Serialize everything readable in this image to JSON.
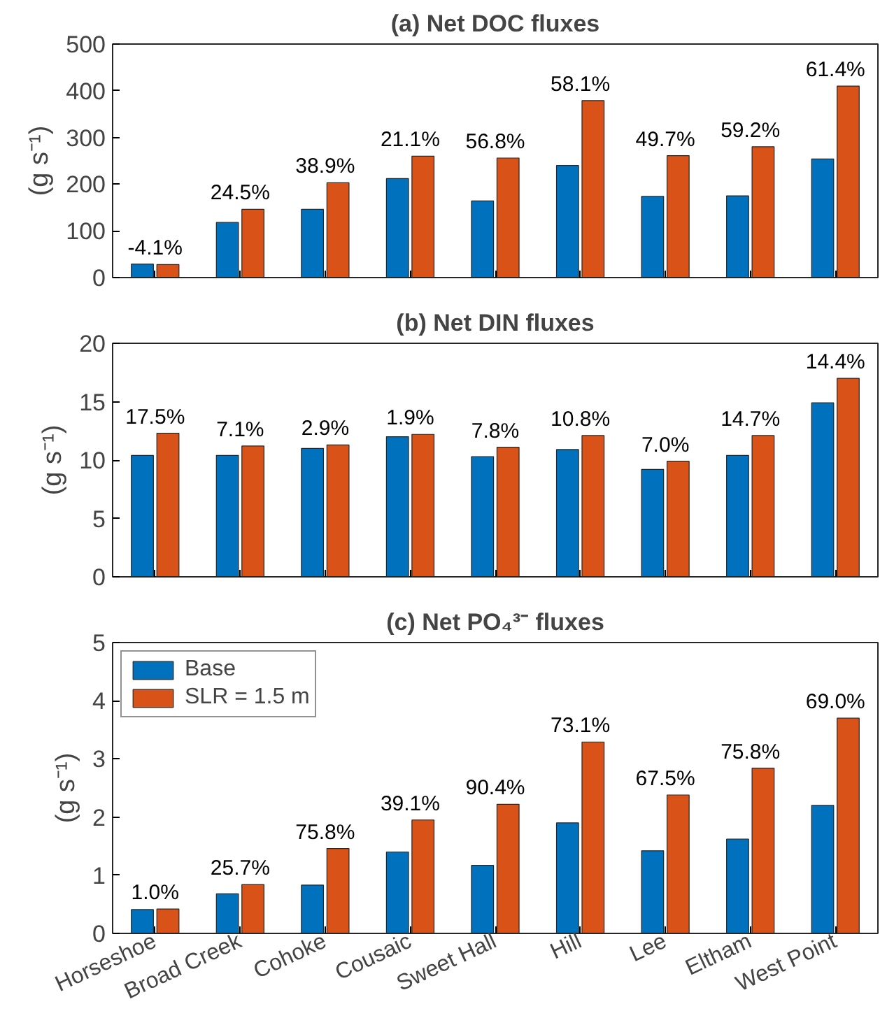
{
  "chart_data": [
    {
      "type": "bar",
      "title": "(a) Net DOC fluxes",
      "ylabel": "(g s⁻¹)",
      "categories": [
        "Horseshoe",
        "Broad Creek",
        "Cohoke",
        "Cousaic",
        "Sweet Hall",
        "Hill",
        "Lee",
        "Eltham",
        "West Point"
      ],
      "series": [
        {
          "color": "#0072bd",
          "values": [
            29,
            118,
            146,
            212,
            164,
            240,
            174,
            175,
            254
          ]
        },
        {
          "color": "#d95319",
          "values": [
            28,
            146,
            203,
            260,
            256,
            379,
            261,
            280,
            410
          ]
        }
      ],
      "ylim": [
        0,
        500
      ],
      "yticks": [
        0,
        100,
        200,
        300,
        400,
        500
      ],
      "tick_labels": "y",
      "legend": false,
      "grid": false,
      "annotations": [
        {
          "text": "-4.1%",
          "x": "Horseshoe",
          "y": 29
        },
        {
          "text": "24.5%",
          "x": "Broad Creek",
          "y": 146
        },
        {
          "text": "38.9%",
          "x": "Cohoke",
          "y": 203
        },
        {
          "text": "21.1%",
          "x": "Cousaic",
          "y": 260
        },
        {
          "text": "56.8%",
          "x": "Sweet Hall",
          "y": 256
        },
        {
          "text": "58.1%",
          "x": "Hill",
          "y": 379
        },
        {
          "text": "49.7%",
          "x": "Lee",
          "y": 261
        },
        {
          "text": "59.2%",
          "x": "Eltham",
          "y": 280
        },
        {
          "text": "61.4%",
          "x": "West Point",
          "y": 410
        }
      ]
    },
    {
      "type": "bar",
      "title": "(b) Net DIN fluxes",
      "ylabel": "(g s⁻¹)",
      "categories": [
        "Horseshoe",
        "Broad Creek",
        "Cohoke",
        "Cousaic",
        "Sweet Hall",
        "Hill",
        "Lee",
        "Eltham",
        "West Point"
      ],
      "series": [
        {
          "color": "#0072bd",
          "values": [
            10.4,
            10.4,
            11.0,
            12.0,
            10.3,
            10.9,
            9.2,
            10.4,
            14.9
          ]
        },
        {
          "color": "#d95319",
          "values": [
            12.3,
            11.2,
            11.3,
            12.2,
            11.1,
            12.1,
            9.9,
            12.1,
            17.0
          ]
        }
      ],
      "ylim": [
        0,
        20
      ],
      "yticks": [
        0,
        5,
        10,
        15,
        20
      ],
      "tick_labels": "y",
      "legend": false,
      "grid": false,
      "annotations": [
        {
          "text": "17.5%",
          "x": "Horseshoe",
          "y": 12.3
        },
        {
          "text": "7.1%",
          "x": "Broad Creek",
          "y": 11.2
        },
        {
          "text": "2.9%",
          "x": "Cohoke",
          "y": 11.3
        },
        {
          "text": "1.9%",
          "x": "Cousaic",
          "y": 12.2
        },
        {
          "text": "7.8%",
          "x": "Sweet Hall",
          "y": 11.1
        },
        {
          "text": "10.8%",
          "x": "Hill",
          "y": 12.1
        },
        {
          "text": "7.0%",
          "x": "Lee",
          "y": 9.9
        },
        {
          "text": "14.7%",
          "x": "Eltham",
          "y": 12.1
        },
        {
          "text": "14.4%",
          "x": "West Point",
          "y": 17.0
        }
      ]
    },
    {
      "type": "bar",
      "title": "(c) Net PO₄³⁻ fluxes",
      "ylabel": "(g s⁻¹)",
      "categories": [
        "Horseshoe",
        "Broad Creek",
        "Cohoke",
        "Cousaic",
        "Sweet Hall",
        "Hill",
        "Lee",
        "Eltham",
        "West Point"
      ],
      "series": [
        {
          "name": "Base",
          "color": "#0072bd",
          "values": [
            0.41,
            0.68,
            0.83,
            1.4,
            1.17,
            1.9,
            1.42,
            1.62,
            2.2
          ]
        },
        {
          "name": "SLR = 1.5 m",
          "color": "#d95319",
          "values": [
            0.42,
            0.84,
            1.46,
            1.95,
            2.22,
            3.29,
            2.38,
            2.84,
            3.7
          ]
        }
      ],
      "ylim": [
        0,
        5
      ],
      "yticks": [
        0,
        1,
        2,
        3,
        4,
        5
      ],
      "legend": "top left",
      "grid": false,
      "annotations": [
        {
          "text": "1.0%",
          "x": "Horseshoe",
          "y": 0.42
        },
        {
          "text": "25.7%",
          "x": "Broad Creek",
          "y": 0.84
        },
        {
          "text": "75.8%",
          "x": "Cohoke",
          "y": 1.46
        },
        {
          "text": "39.1%",
          "x": "Cousaic",
          "y": 1.95
        },
        {
          "text": "90.4%",
          "x": "Sweet Hall",
          "y": 2.22
        },
        {
          "text": "73.1%",
          "x": "Hill",
          "y": 3.29
        },
        {
          "text": "67.5%",
          "x": "Lee",
          "y": 2.38
        },
        {
          "text": "75.8%",
          "x": "Eltham",
          "y": 2.84
        },
        {
          "text": "69.0%",
          "x": "West Point",
          "y": 3.7
        }
      ]
    }
  ]
}
